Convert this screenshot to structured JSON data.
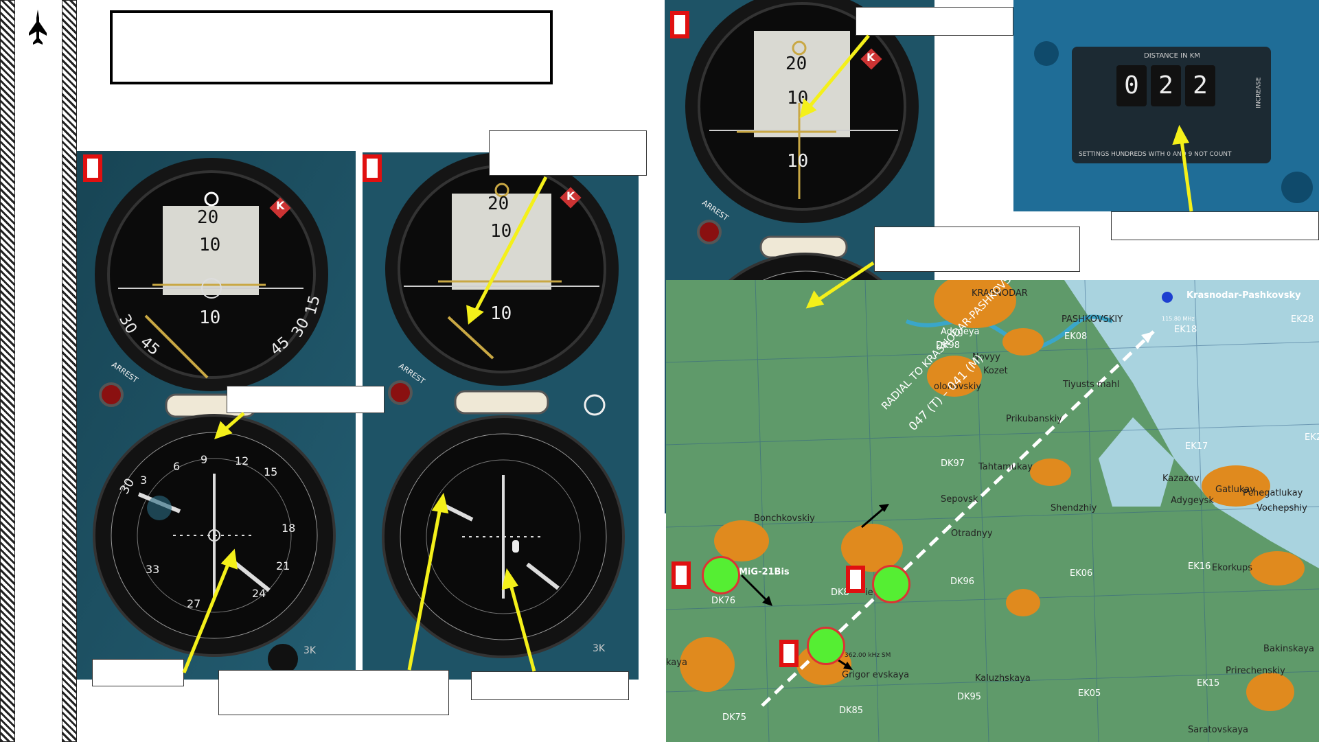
{
  "sidebar": {
    "icon": "jet-silhouette-icon"
  },
  "title_box": {
    "text": ""
  },
  "callouts": {
    "top_right_mid": "",
    "left_top": "",
    "mid_pointer": "",
    "odometer_label": "",
    "compass_label": "",
    "bottom_left": "",
    "bottom_mid": "",
    "bottom_right": ""
  },
  "instruments": {
    "adi_scale": [
      "20",
      "10",
      "10",
      "20"
    ],
    "bank_marks": [
      "30",
      "45",
      "45",
      "30",
      "15"
    ],
    "arrest_label": "ARREST",
    "k_label": "K",
    "hsi_numbers": [
      "30",
      "3",
      "6",
      "9",
      "12",
      "15",
      "18",
      "21",
      "24",
      "27",
      "33"
    ],
    "hsi_3k": "3K"
  },
  "odometer": {
    "header": "DISTANCE IN KM",
    "digits": [
      "0",
      "2",
      "2"
    ],
    "footer": "SETTINGS  HUNDREDS WITH 0 AND 9 NOT COUNT",
    "side_label": "INCREASE"
  },
  "map": {
    "labels": {
      "krasnodar": "KRASNODAR",
      "krasnodar_pashkovsky": "Krasnodar-Pashkovsky",
      "pashkovskiy": "PASHKOVSKIY",
      "adygeya": "Adygeya",
      "novyy": "Novyy",
      "kozet": "Kozet",
      "ek08": "EK08",
      "dk98": "DK98",
      "ek18": "EK18",
      "ek28": "EK28",
      "solonovskiy": "olonovskiy",
      "tiyusts": "Tiyusts mahl",
      "prikubanskiy": "Prikubanskiy",
      "ek17": "EK17",
      "ek2": "EK2",
      "dk97": "DK97",
      "tahtamukay": "Tahtamukay",
      "sepovsk": "Sepovsk",
      "kazazov": "Kazazov",
      "gatlukay": "Gatlukay",
      "pchegatlukay": "Pchegatlukay",
      "adygeysk": "Adygeysk",
      "vochepshiy": "Vochepshiy",
      "shendzhiy": "Shendzhiy",
      "bonchkovskiy": "Bonchkovskiy",
      "otradnyy": "Otradnyy",
      "dk96": "DK96",
      "ek06": "EK06",
      "ek16": "EK16",
      "mig21": "MiG-21Bis",
      "dk76": "DK76",
      "dk86": "DK8",
      "levskaya": "ievskaya",
      "freq": "362.00 kHz SM",
      "grigorevskaya": "Grigor evskaya",
      "kaluzhskaya": "Kaluzhskaya",
      "ek05": "EK05",
      "dk95": "DK95",
      "dk85": "DK85",
      "dk75": "DK75",
      "bakinskaya": "Bakinskaya",
      "prirechenskiy": "Prirechenskiy",
      "ek15": "EK15",
      "saratovskaya": "Saratovskaya",
      "ekorkups": "Ekorkups",
      "kaya": "kaya",
      "vor_freq": "115.80 MHz"
    },
    "radial_text_1": "RADIAL TO KRASNODAR-PASHKOVSKY",
    "radial_text_2": "047 (T) – 041 (M)",
    "colors": {
      "land": "#5f9a6a",
      "water": "#a9d3df",
      "urban": "#e08a1e",
      "river": "#3aa6c9"
    }
  }
}
